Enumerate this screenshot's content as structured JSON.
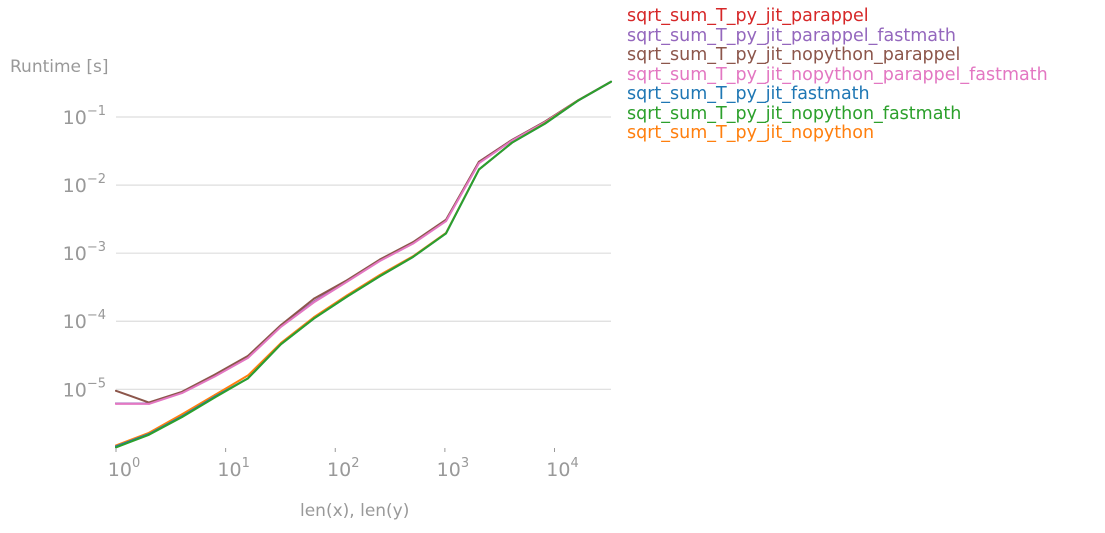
{
  "chart_data": {
    "type": "line",
    "title": "",
    "xlabel": "len(x), len(y)",
    "ylabel": "Runtime [s]",
    "xscale": "log",
    "yscale": "log",
    "xlim": [
      1,
      32768
    ],
    "ylim": [
      1.2e-06,
      0.35
    ],
    "grid": "horizontal",
    "legend_position": "outside-right-top",
    "x_ticks": [
      {
        "value": 1,
        "base": "10",
        "exp": "0"
      },
      {
        "value": 10,
        "base": "10",
        "exp": "1"
      },
      {
        "value": 100,
        "base": "10",
        "exp": "2"
      },
      {
        "value": 1000,
        "base": "10",
        "exp": "3"
      },
      {
        "value": 10000,
        "base": "10",
        "exp": "4"
      }
    ],
    "y_ticks": [
      {
        "value": 1e-05,
        "base": "10",
        "exp": "−5"
      },
      {
        "value": 0.0001,
        "base": "10",
        "exp": "−4"
      },
      {
        "value": 0.001,
        "base": "10",
        "exp": "−3"
      },
      {
        "value": 0.01,
        "base": "10",
        "exp": "−2"
      },
      {
        "value": 0.1,
        "base": "10",
        "exp": "−1"
      }
    ],
    "x": [
      1,
      2,
      4,
      8,
      16,
      32,
      64,
      128,
      256,
      512,
      1024,
      2048,
      4096,
      8192,
      16384,
      32768
    ],
    "series": [
      {
        "name": "sqrt_sum_T_py_jit_parappel",
        "color": "#d62728",
        "values": [
          6.2e-06,
          6.2e-06,
          9e-06,
          1.6e-05,
          3e-05,
          8.5e-05,
          0.000195,
          0.00039,
          0.00078,
          0.0014,
          0.003,
          0.022,
          0.046,
          0.085,
          0.175,
          0.33
        ]
      },
      {
        "name": "sqrt_sum_T_py_jit_parappel_fastmath",
        "color": "#9467bd",
        "values": [
          6.2e-06,
          6.2e-06,
          9e-06,
          1.6e-05,
          3e-05,
          8.5e-05,
          0.000195,
          0.00039,
          0.00078,
          0.0014,
          0.003,
          0.022,
          0.046,
          0.085,
          0.175,
          0.33
        ]
      },
      {
        "name": "sqrt_sum_T_py_jit_nopython_parappel",
        "color": "#8c564b",
        "values": [
          9.5e-06,
          6.4e-06,
          9.2e-06,
          1.65e-05,
          3.1e-05,
          8.8e-05,
          0.000215,
          0.0004,
          0.00081,
          0.00145,
          0.0031,
          0.022,
          0.046,
          0.086,
          0.176,
          0.33
        ]
      },
      {
        "name": "sqrt_sum_T_py_jit_nopython_parappel_fastmath",
        "color": "#e377c2",
        "values": [
          6.1e-06,
          6.1e-06,
          8.8e-06,
          1.55e-05,
          2.9e-05,
          8.3e-05,
          0.00019,
          0.00038,
          0.00077,
          0.00138,
          0.00295,
          0.021,
          0.045,
          0.084,
          0.174,
          0.33
        ]
      },
      {
        "name": "sqrt_sum_T_py_jit_fastmath",
        "color": "#1f77b4",
        "values": [
          1.45e-06,
          2.2e-06,
          4e-06,
          7.8e-06,
          1.45e-05,
          4.6e-05,
          0.00011,
          0.00023,
          0.00046,
          0.00088,
          0.00195,
          0.017,
          0.042,
          0.08,
          0.174,
          0.33
        ]
      },
      {
        "name": "sqrt_sum_T_py_jit_nopython_fastmath",
        "color": "#2ca02c",
        "values": [
          1.4e-06,
          2.15e-06,
          3.9e-06,
          7.6e-06,
          1.45e-05,
          4.6e-05,
          0.00011,
          0.00023,
          0.00046,
          0.00088,
          0.00195,
          0.017,
          0.042,
          0.08,
          0.174,
          0.33
        ]
      },
      {
        "name": "sqrt_sum_T_py_jit_nopython",
        "color": "#ff7f0e",
        "values": [
          1.5e-06,
          2.3e-06,
          4.3e-06,
          8.3e-06,
          1.6e-05,
          4.8e-05,
          0.000115,
          0.00024,
          0.00048,
          0.0009,
          0.00198,
          0.017,
          0.042,
          0.081,
          0.175,
          0.33
        ]
      }
    ],
    "draw_order": [
      "sqrt_sum_T_py_jit_parappel",
      "sqrt_sum_T_py_jit_parappel_fastmath",
      "sqrt_sum_T_py_jit_nopython_parappel",
      "sqrt_sum_T_py_jit_nopython_parappel_fastmath",
      "sqrt_sum_T_py_jit_nopython",
      "sqrt_sum_T_py_jit_fastmath",
      "sqrt_sum_T_py_jit_nopython_fastmath"
    ],
    "colors": {
      "axis_text": "#999999",
      "grid": "#dddddd"
    }
  }
}
